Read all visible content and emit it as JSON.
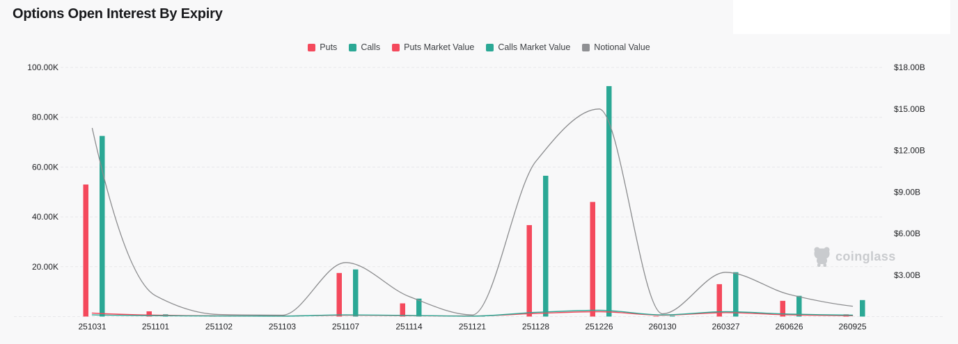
{
  "page": {
    "title": "Options Open Interest By Expiry",
    "background": "#f8f8f9"
  },
  "watermark": {
    "label": "coinglass",
    "color": "#c9cbce"
  },
  "legend": [
    {
      "label": "Puts",
      "color": "#f4495c"
    },
    {
      "label": "Calls",
      "color": "#2ba895"
    },
    {
      "label": "Puts Market Value",
      "color": "#f4495c"
    },
    {
      "label": "Calls Market Value",
      "color": "#2ba895"
    },
    {
      "label": "Notional Value",
      "color": "#8f9093"
    }
  ],
  "chart_data": {
    "type": "bar",
    "title": "Options Open Interest By Expiry",
    "categories": [
      "251031",
      "251101",
      "251102",
      "251103",
      "251107",
      "251114",
      "251121",
      "251128",
      "251226",
      "260130",
      "260327",
      "260626",
      "260925"
    ],
    "series": [
      {
        "name": "Puts",
        "type": "bar",
        "axis": "left",
        "unit": "K contracts",
        "color": "#f4495c",
        "values": [
          53.0,
          2.1,
          0.3,
          0.2,
          17.5,
          5.3,
          0.2,
          36.7,
          46.0,
          0.2,
          13.0,
          6.3,
          0.9
        ]
      },
      {
        "name": "Calls",
        "type": "bar",
        "axis": "left",
        "unit": "K contracts",
        "color": "#2ba895",
        "values": [
          72.5,
          0.9,
          0.4,
          0.3,
          18.9,
          7.2,
          0.3,
          56.5,
          92.5,
          0.3,
          17.8,
          8.3,
          6.6
        ]
      },
      {
        "name": "Puts Market Value",
        "type": "line",
        "axis": "right",
        "unit": "$B",
        "color": "#f4495c",
        "values": [
          0.25,
          0.1,
          0.05,
          0.04,
          0.1,
          0.06,
          0.04,
          0.22,
          0.35,
          0.1,
          0.28,
          0.12,
          0.06
        ]
      },
      {
        "name": "Calls Market Value",
        "type": "line",
        "axis": "right",
        "unit": "$B",
        "color": "#2ba895",
        "values": [
          0.12,
          0.06,
          0.04,
          0.03,
          0.12,
          0.08,
          0.03,
          0.3,
          0.45,
          0.12,
          0.35,
          0.18,
          0.1
        ]
      },
      {
        "name": "Notional Value",
        "type": "line",
        "axis": "right",
        "unit": "$B",
        "color": "#8a8b8d",
        "values": [
          13.6,
          1.5,
          0.15,
          0.1,
          3.9,
          1.45,
          0.12,
          11.2,
          15.0,
          0.2,
          3.2,
          1.6,
          0.75
        ]
      }
    ],
    "left_axis": {
      "labels": [
        "100.00K",
        "80.00K",
        "60.00K",
        "40.00K",
        "20.00K"
      ],
      "tick_values": [
        100,
        80,
        60,
        40,
        20
      ],
      "max": 100,
      "min": 0
    },
    "right_axis": {
      "labels": [
        "$18.00B",
        "$15.00B",
        "$12.00B",
        "$9.00B",
        "$6.00B",
        "$3.00B"
      ],
      "tick_values": [
        18,
        15,
        12,
        9,
        6,
        3
      ],
      "max": 18,
      "min": 0
    },
    "grid": "horizontal-dashed",
    "legend_position": "top-center"
  }
}
